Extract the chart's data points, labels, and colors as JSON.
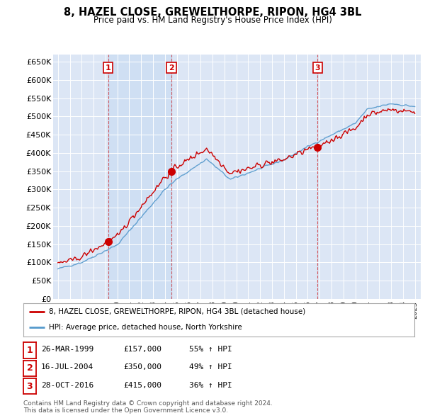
{
  "title": "8, HAZEL CLOSE, GREWELTHORPE, RIPON, HG4 3BL",
  "subtitle": "Price paid vs. HM Land Registry's House Price Index (HPI)",
  "ylim": [
    0,
    670000
  ],
  "yticks": [
    0,
    50000,
    100000,
    150000,
    200000,
    250000,
    300000,
    350000,
    400000,
    450000,
    500000,
    550000,
    600000,
    650000
  ],
  "ytick_labels": [
    "£0",
    "£50K",
    "£100K",
    "£150K",
    "£200K",
    "£250K",
    "£300K",
    "£350K",
    "£400K",
    "£450K",
    "£500K",
    "£550K",
    "£600K",
    "£650K"
  ],
  "house_color": "#cc0000",
  "hpi_color": "#5599cc",
  "sale_dates": [
    1999.23,
    2004.54,
    2016.82
  ],
  "sale_prices": [
    157000,
    350000,
    415000
  ],
  "sale_labels": [
    "1",
    "2",
    "3"
  ],
  "legend_house": "8, HAZEL CLOSE, GREWELTHORPE, RIPON, HG4 3BL (detached house)",
  "legend_hpi": "HPI: Average price, detached house, North Yorkshire",
  "table_rows": [
    [
      "1",
      "26-MAR-1999",
      "£157,000",
      "55% ↑ HPI"
    ],
    [
      "2",
      "16-JUL-2004",
      "£350,000",
      "49% ↑ HPI"
    ],
    [
      "3",
      "28-OCT-2016",
      "£415,000",
      "36% ↑ HPI"
    ]
  ],
  "footnote": "Contains HM Land Registry data © Crown copyright and database right 2024.\nThis data is licensed under the Open Government Licence v3.0.",
  "background_color": "#ffffff",
  "plot_bg_color": "#dce6f5"
}
